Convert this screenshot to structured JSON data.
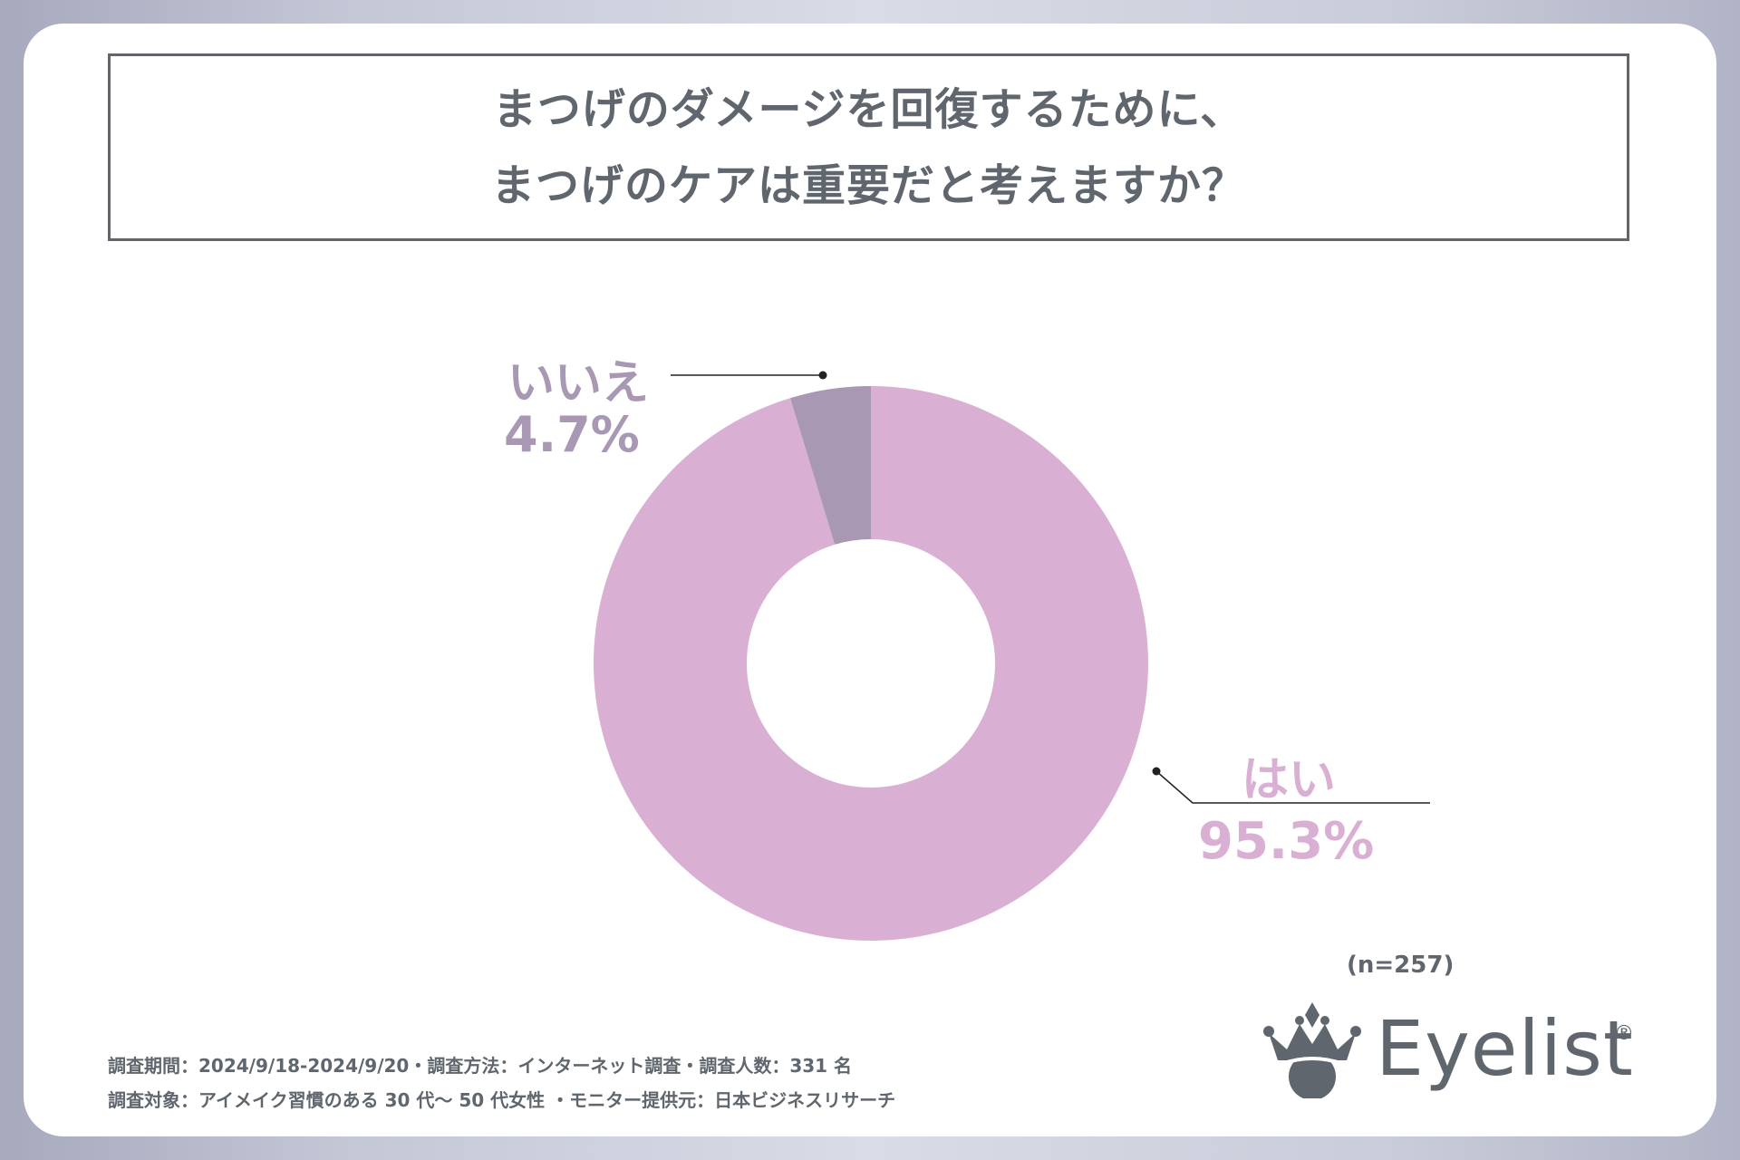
{
  "title": {
    "line1": "まつげのダメージを回復するために、",
    "line2": "まつげのケアは重要だと考えますか？"
  },
  "sample_size": "(n=257)",
  "footnotes": {
    "line1": "調査期間：2024/9/18-2024/9/20・調査方法：インターネット調査・調査人数：331 名",
    "line2": "調査対象：アイメイク習慣のある 30 代～ 50 代女性 ・モニター提供元：日本ビジネスリサーチ"
  },
  "logo": {
    "text": "Eyelist",
    "mark": "®",
    "icon": "crown-eye-icon"
  },
  "colors": {
    "yes": "#d9b0d3",
    "no": "#a898b4",
    "text": "#5f666d"
  },
  "chart_data": {
    "type": "pie",
    "donut": true,
    "slices": [
      {
        "label": "はい",
        "value": 95.3,
        "value_label": "95.3%",
        "color": "#d9b0d3"
      },
      {
        "label": "いいえ",
        "value": 4.7,
        "value_label": "4.7%",
        "color": "#a898b4"
      }
    ],
    "title": "まつげのダメージを回復するために、まつげのケアは重要だと考えますか？"
  }
}
